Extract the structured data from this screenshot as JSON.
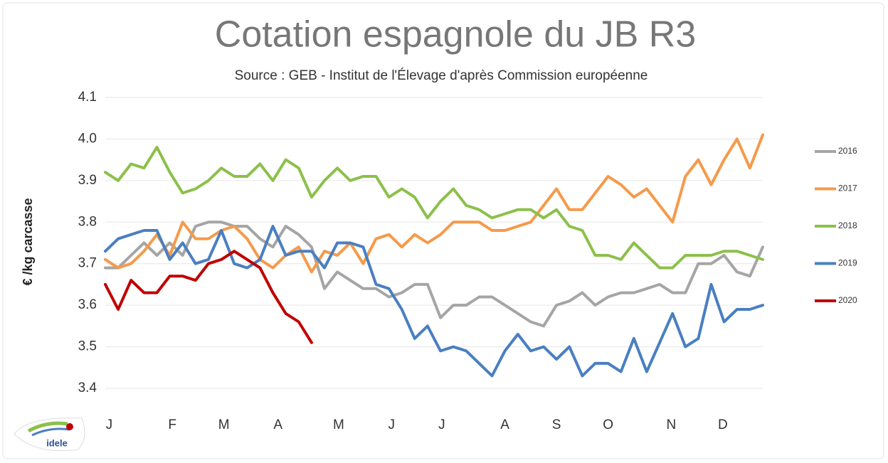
{
  "chart_data": {
    "type": "line",
    "title": "Cotation espagnole du JB R3",
    "subtitle": "Source : GEB - Institut de l'Élevage d'après Commission européenne",
    "y_label": "€ /kg carcasse",
    "logo": "idele",
    "x": [
      1,
      2,
      3,
      4,
      5,
      6,
      7,
      8,
      9,
      10,
      11,
      12,
      13,
      14,
      15,
      16,
      17,
      18,
      19,
      20,
      21,
      22,
      23,
      24,
      25,
      26,
      27,
      28,
      29,
      30,
      31,
      32,
      33,
      34,
      35,
      36,
      37,
      38,
      39,
      40,
      41,
      42,
      43,
      44,
      45,
      46,
      47,
      48,
      49,
      50,
      51,
      52
    ],
    "xlim": [
      1,
      52
    ],
    "xticks": [
      {
        "value": 1.3,
        "label": "J"
      },
      {
        "value": 6.2,
        "label": "F"
      },
      {
        "value": 10.2,
        "label": "M"
      },
      {
        "value": 14.4,
        "label": "A"
      },
      {
        "value": 19.1,
        "label": "M"
      },
      {
        "value": 23.2,
        "label": "J"
      },
      {
        "value": 27.1,
        "label": "J"
      },
      {
        "value": 32.0,
        "label": "A"
      },
      {
        "value": 36.0,
        "label": "S"
      },
      {
        "value": 40.0,
        "label": "O"
      },
      {
        "value": 44.9,
        "label": "N"
      },
      {
        "value": 48.9,
        "label": "D"
      }
    ],
    "ylim": [
      3.4,
      4.1
    ],
    "yticks": [
      3.4,
      3.5,
      3.6,
      3.7,
      3.8,
      3.9,
      {
        "value": 4,
        "label": "4.0"
      },
      4.1
    ],
    "grid": true,
    "legend": "right",
    "series": [
      {
        "name": "2016",
        "color": "#a5a5a5",
        "values": [
          3.69,
          3.69,
          3.72,
          3.75,
          3.72,
          3.75,
          3.72,
          3.79,
          3.8,
          3.8,
          3.79,
          3.79,
          3.76,
          3.74,
          3.79,
          3.77,
          3.74,
          3.64,
          3.68,
          3.66,
          3.64,
          3.64,
          3.62,
          3.63,
          3.65,
          3.65,
          3.57,
          3.6,
          3.6,
          3.62,
          3.62,
          3.6,
          3.58,
          3.56,
          3.55,
          3.6,
          3.61,
          3.63,
          3.6,
          3.62,
          3.63,
          3.63,
          3.64,
          3.65,
          3.63,
          3.63,
          3.7,
          3.7,
          3.72,
          3.68,
          3.67,
          3.74
        ]
      },
      {
        "name": "2017",
        "color": "#f59a4a",
        "values": [
          3.71,
          3.69,
          3.7,
          3.73,
          3.77,
          3.72,
          3.8,
          3.76,
          3.76,
          3.78,
          3.79,
          3.76,
          3.71,
          3.69,
          3.72,
          3.74,
          3.68,
          3.73,
          3.72,
          3.75,
          3.7,
          3.76,
          3.77,
          3.74,
          3.77,
          3.75,
          3.77,
          3.8,
          3.8,
          3.8,
          3.78,
          3.78,
          3.79,
          3.8,
          3.84,
          3.88,
          3.83,
          3.83,
          3.87,
          3.91,
          3.89,
          3.86,
          3.88,
          3.84,
          3.8,
          3.91,
          3.95,
          3.89,
          3.95,
          4.0,
          3.93,
          4.01
        ]
      },
      {
        "name": "2018",
        "color": "#8cc04b",
        "values": [
          3.92,
          3.9,
          3.94,
          3.93,
          3.98,
          3.92,
          3.87,
          3.88,
          3.9,
          3.93,
          3.91,
          3.91,
          3.94,
          3.9,
          3.95,
          3.93,
          3.86,
          3.9,
          3.93,
          3.9,
          3.91,
          3.91,
          3.86,
          3.88,
          3.86,
          3.81,
          3.85,
          3.88,
          3.84,
          3.83,
          3.81,
          3.82,
          3.83,
          3.83,
          3.81,
          3.83,
          3.79,
          3.78,
          3.72,
          3.72,
          3.71,
          3.75,
          3.72,
          3.69,
          3.69,
          3.72,
          3.72,
          3.72,
          3.73,
          3.73,
          3.72,
          3.71
        ]
      },
      {
        "name": "2019",
        "color": "#4a7fc1",
        "values": [
          3.73,
          3.76,
          3.77,
          3.78,
          3.78,
          3.71,
          3.75,
          3.7,
          3.71,
          3.78,
          3.7,
          3.69,
          3.71,
          3.79,
          3.72,
          3.73,
          3.73,
          3.69,
          3.75,
          3.75,
          3.74,
          3.65,
          3.64,
          3.59,
          3.52,
          3.55,
          3.49,
          3.5,
          3.49,
          3.46,
          3.43,
          3.49,
          3.53,
          3.49,
          3.5,
          3.47,
          3.5,
          3.43,
          3.46,
          3.46,
          3.44,
          3.52,
          3.44,
          3.51,
          3.58,
          3.5,
          3.52,
          3.65,
          3.56,
          3.59,
          3.59,
          3.6
        ]
      },
      {
        "name": "2020",
        "color": "#c00000",
        "values": [
          3.65,
          3.59,
          3.66,
          3.63,
          3.63,
          3.67,
          3.67,
          3.66,
          3.7,
          3.71,
          3.73,
          3.71,
          3.69,
          3.63,
          3.58,
          3.56,
          3.51,
          null,
          null,
          null,
          null,
          null,
          null,
          null,
          null,
          null,
          null,
          null,
          null,
          null,
          null,
          null,
          null,
          null,
          null,
          null,
          null,
          null,
          null,
          null,
          null,
          null,
          null,
          null,
          null,
          null,
          null,
          null,
          null,
          null,
          null,
          null
        ]
      }
    ]
  }
}
